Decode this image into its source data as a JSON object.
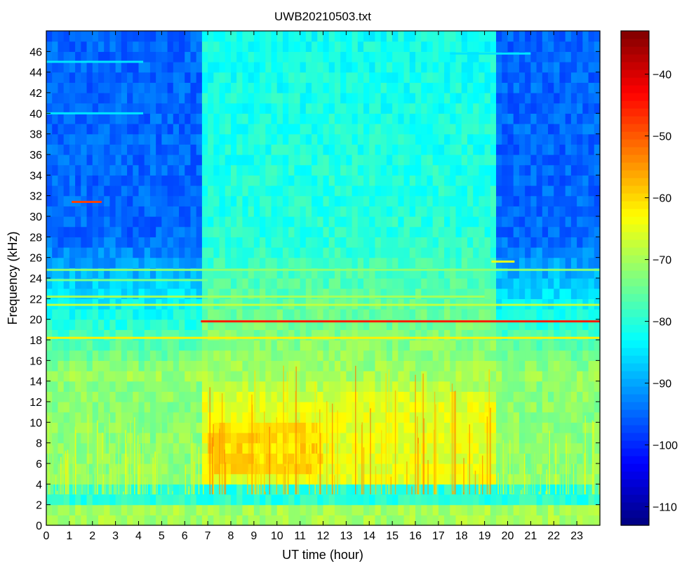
{
  "chart_data": {
    "type": "heatmap",
    "title": "UWB20210503.txt",
    "xlabel": "UT time (hour)",
    "ylabel": "Frequency (kHz)",
    "xlim": [
      0,
      24
    ],
    "ylim": [
      0,
      48
    ],
    "x_ticks": [
      0,
      1,
      2,
      3,
      4,
      5,
      6,
      7,
      8,
      9,
      10,
      11,
      12,
      13,
      14,
      15,
      16,
      17,
      18,
      19,
      20,
      21,
      22,
      23
    ],
    "y_ticks": [
      0,
      2,
      4,
      6,
      8,
      10,
      12,
      14,
      16,
      18,
      20,
      22,
      24,
      26,
      28,
      30,
      32,
      34,
      36,
      38,
      40,
      42,
      44,
      46
    ],
    "colorbar": {
      "clim": [
        -113,
        -33
      ],
      "ticks": [
        -110,
        -100,
        -90,
        -80,
        -70,
        -60,
        -50,
        -40
      ],
      "colormap": "jet"
    },
    "description_levels_db": {
      "background_night_high_freq": -95,
      "background_day_high_freq": -80,
      "low_freq_band_day_4_to_14_khz": -65,
      "peak_bursts_6_to_9_khz": -55
    },
    "transmitter_lines_khz": [
      {
        "freq": 19.8,
        "start": 6.7,
        "end": 24,
        "level": -45
      },
      {
        "freq": 18.2,
        "start": 0.0,
        "end": 24,
        "level": -62
      },
      {
        "freq": 21.4,
        "start": 0.0,
        "end": 24,
        "level": -68
      },
      {
        "freq": 22.2,
        "start": 0.0,
        "end": 19.0,
        "level": -70
      },
      {
        "freq": 24.8,
        "start": 0.0,
        "end": 24,
        "level": -72
      },
      {
        "freq": 23.8,
        "start": 0.0,
        "end": 7.0,
        "level": -74
      },
      {
        "freq": 25.6,
        "start": 19.3,
        "end": 20.3,
        "level": -65
      },
      {
        "freq": 31.4,
        "start": 1.1,
        "end": 2.4,
        "level": -48
      },
      {
        "freq": 40.0,
        "start": 0.0,
        "end": 4.2,
        "level": -85
      },
      {
        "freq": 45.0,
        "start": 0.0,
        "end": 4.2,
        "level": -85
      },
      {
        "freq": 45.8,
        "start": 17.5,
        "end": 21.0,
        "level": -85
      }
    ]
  }
}
